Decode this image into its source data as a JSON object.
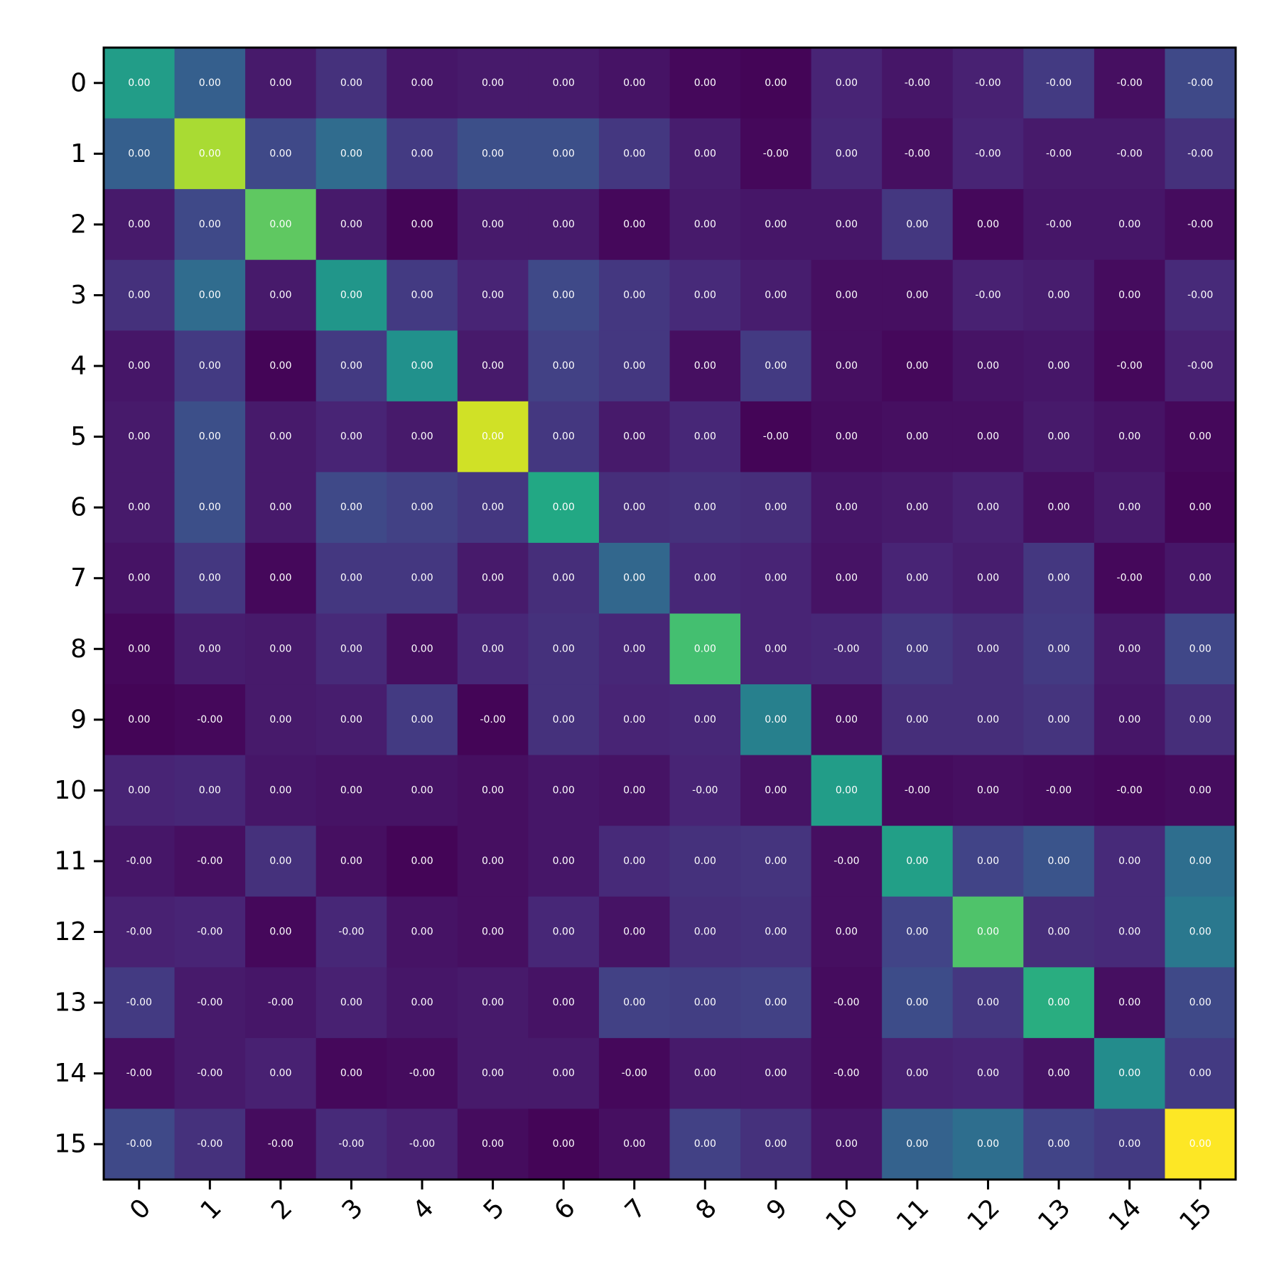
{
  "chart_data": {
    "type": "heatmap",
    "title": "",
    "xlabel": "",
    "ylabel": "",
    "colormap": "viridis",
    "x_categories": [
      "0",
      "1",
      "2",
      "3",
      "4",
      "5",
      "6",
      "7",
      "8",
      "9",
      "10",
      "11",
      "12",
      "13",
      "14",
      "15"
    ],
    "y_categories": [
      "0",
      "1",
      "2",
      "3",
      "4",
      "5",
      "6",
      "7",
      "8",
      "9",
      "10",
      "11",
      "12",
      "13",
      "14",
      "15"
    ],
    "intensity_scale": [
      0,
      1
    ],
    "intensity": [
      [
        0.55,
        0.3,
        0.07,
        0.14,
        0.06,
        0.07,
        0.07,
        0.05,
        0.02,
        0.01,
        0.1,
        0.06,
        0.09,
        0.17,
        0.04,
        0.22
      ],
      [
        0.3,
        0.87,
        0.22,
        0.35,
        0.17,
        0.24,
        0.24,
        0.16,
        0.08,
        0.02,
        0.11,
        0.04,
        0.1,
        0.07,
        0.07,
        0.14
      ],
      [
        0.07,
        0.22,
        0.75,
        0.07,
        0.01,
        0.07,
        0.07,
        0.02,
        0.07,
        0.06,
        0.06,
        0.16,
        0.02,
        0.06,
        0.06,
        0.03
      ],
      [
        0.14,
        0.35,
        0.07,
        0.52,
        0.17,
        0.1,
        0.22,
        0.16,
        0.12,
        0.08,
        0.04,
        0.04,
        0.09,
        0.08,
        0.03,
        0.12
      ],
      [
        0.06,
        0.17,
        0.01,
        0.17,
        0.5,
        0.07,
        0.19,
        0.16,
        0.04,
        0.17,
        0.04,
        0.02,
        0.05,
        0.06,
        0.02,
        0.09
      ],
      [
        0.07,
        0.24,
        0.07,
        0.1,
        0.07,
        0.93,
        0.16,
        0.07,
        0.11,
        0.01,
        0.03,
        0.04,
        0.04,
        0.07,
        0.05,
        0.02
      ],
      [
        0.07,
        0.24,
        0.07,
        0.22,
        0.19,
        0.16,
        0.6,
        0.13,
        0.14,
        0.13,
        0.06,
        0.07,
        0.09,
        0.04,
        0.07,
        0.01
      ],
      [
        0.05,
        0.16,
        0.02,
        0.16,
        0.16,
        0.07,
        0.13,
        0.33,
        0.11,
        0.1,
        0.05,
        0.1,
        0.08,
        0.16,
        0.02,
        0.06
      ],
      [
        0.02,
        0.08,
        0.07,
        0.12,
        0.04,
        0.11,
        0.14,
        0.11,
        0.7,
        0.1,
        0.11,
        0.16,
        0.13,
        0.17,
        0.07,
        0.21
      ],
      [
        0.01,
        0.02,
        0.07,
        0.08,
        0.17,
        0.01,
        0.14,
        0.1,
        0.11,
        0.43,
        0.04,
        0.13,
        0.13,
        0.15,
        0.06,
        0.13
      ],
      [
        0.1,
        0.11,
        0.06,
        0.05,
        0.05,
        0.04,
        0.06,
        0.05,
        0.1,
        0.05,
        0.55,
        0.03,
        0.04,
        0.03,
        0.02,
        0.03
      ],
      [
        0.06,
        0.04,
        0.14,
        0.04,
        0.01,
        0.04,
        0.06,
        0.12,
        0.14,
        0.15,
        0.04,
        0.56,
        0.2,
        0.26,
        0.12,
        0.36
      ],
      [
        0.09,
        0.1,
        0.02,
        0.11,
        0.05,
        0.04,
        0.11,
        0.05,
        0.13,
        0.14,
        0.04,
        0.2,
        0.72,
        0.13,
        0.12,
        0.4
      ],
      [
        0.17,
        0.07,
        0.06,
        0.09,
        0.06,
        0.07,
        0.05,
        0.19,
        0.18,
        0.19,
        0.03,
        0.23,
        0.16,
        0.62,
        0.04,
        0.22
      ],
      [
        0.04,
        0.07,
        0.09,
        0.02,
        0.03,
        0.07,
        0.07,
        0.02,
        0.07,
        0.07,
        0.03,
        0.09,
        0.1,
        0.05,
        0.48,
        0.17
      ],
      [
        0.22,
        0.14,
        0.03,
        0.12,
        0.09,
        0.03,
        0.01,
        0.04,
        0.19,
        0.14,
        0.06,
        0.31,
        0.36,
        0.2,
        0.17,
        1.0
      ]
    ],
    "cell_labels": [
      [
        "0.00",
        "0.00",
        "0.00",
        "0.00",
        "0.00",
        "0.00",
        "0.00",
        "0.00",
        "0.00",
        "0.00",
        "0.00",
        "-0.00",
        "-0.00",
        "-0.00",
        "-0.00",
        "-0.00"
      ],
      [
        "0.00",
        "0.00",
        "0.00",
        "0.00",
        "0.00",
        "0.00",
        "0.00",
        "0.00",
        "0.00",
        "-0.00",
        "0.00",
        "-0.00",
        "-0.00",
        "-0.00",
        "-0.00",
        "-0.00"
      ],
      [
        "0.00",
        "0.00",
        "0.00",
        "0.00",
        "0.00",
        "0.00",
        "0.00",
        "0.00",
        "0.00",
        "0.00",
        "0.00",
        "0.00",
        "0.00",
        "-0.00",
        "0.00",
        "-0.00"
      ],
      [
        "0.00",
        "0.00",
        "0.00",
        "0.00",
        "0.00",
        "0.00",
        "0.00",
        "0.00",
        "0.00",
        "0.00",
        "0.00",
        "0.00",
        "-0.00",
        "0.00",
        "0.00",
        "-0.00"
      ],
      [
        "0.00",
        "0.00",
        "0.00",
        "0.00",
        "0.00",
        "0.00",
        "0.00",
        "0.00",
        "0.00",
        "0.00",
        "0.00",
        "0.00",
        "0.00",
        "0.00",
        "-0.00",
        "-0.00"
      ],
      [
        "0.00",
        "0.00",
        "0.00",
        "0.00",
        "0.00",
        "0.00",
        "0.00",
        "0.00",
        "0.00",
        "-0.00",
        "0.00",
        "0.00",
        "0.00",
        "0.00",
        "0.00",
        "0.00"
      ],
      [
        "0.00",
        "0.00",
        "0.00",
        "0.00",
        "0.00",
        "0.00",
        "0.00",
        "0.00",
        "0.00",
        "0.00",
        "0.00",
        "0.00",
        "0.00",
        "0.00",
        "0.00",
        "0.00"
      ],
      [
        "0.00",
        "0.00",
        "0.00",
        "0.00",
        "0.00",
        "0.00",
        "0.00",
        "0.00",
        "0.00",
        "0.00",
        "0.00",
        "0.00",
        "0.00",
        "0.00",
        "-0.00",
        "0.00"
      ],
      [
        "0.00",
        "0.00",
        "0.00",
        "0.00",
        "0.00",
        "0.00",
        "0.00",
        "0.00",
        "0.00",
        "0.00",
        "-0.00",
        "0.00",
        "0.00",
        "0.00",
        "0.00",
        "0.00"
      ],
      [
        "0.00",
        "-0.00",
        "0.00",
        "0.00",
        "0.00",
        "-0.00",
        "0.00",
        "0.00",
        "0.00",
        "0.00",
        "0.00",
        "0.00",
        "0.00",
        "0.00",
        "0.00",
        "0.00"
      ],
      [
        "0.00",
        "0.00",
        "0.00",
        "0.00",
        "0.00",
        "0.00",
        "0.00",
        "0.00",
        "-0.00",
        "0.00",
        "0.00",
        "-0.00",
        "0.00",
        "-0.00",
        "-0.00",
        "0.00"
      ],
      [
        "-0.00",
        "-0.00",
        "0.00",
        "0.00",
        "0.00",
        "0.00",
        "0.00",
        "0.00",
        "0.00",
        "0.00",
        "-0.00",
        "0.00",
        "0.00",
        "0.00",
        "0.00",
        "0.00"
      ],
      [
        "-0.00",
        "-0.00",
        "0.00",
        "-0.00",
        "0.00",
        "0.00",
        "0.00",
        "0.00",
        "0.00",
        "0.00",
        "0.00",
        "0.00",
        "0.00",
        "0.00",
        "0.00",
        "0.00"
      ],
      [
        "-0.00",
        "-0.00",
        "-0.00",
        "0.00",
        "0.00",
        "0.00",
        "0.00",
        "0.00",
        "0.00",
        "0.00",
        "-0.00",
        "0.00",
        "0.00",
        "0.00",
        "0.00",
        "0.00"
      ],
      [
        "-0.00",
        "-0.00",
        "0.00",
        "0.00",
        "-0.00",
        "0.00",
        "0.00",
        "-0.00",
        "0.00",
        "0.00",
        "-0.00",
        "0.00",
        "0.00",
        "0.00",
        "0.00",
        "0.00"
      ],
      [
        "-0.00",
        "-0.00",
        "-0.00",
        "-0.00",
        "-0.00",
        "0.00",
        "0.00",
        "0.00",
        "0.00",
        "0.00",
        "0.00",
        "0.00",
        "0.00",
        "0.00",
        "0.00",
        "0.00"
      ]
    ],
    "grid": false,
    "legend": "none"
  }
}
